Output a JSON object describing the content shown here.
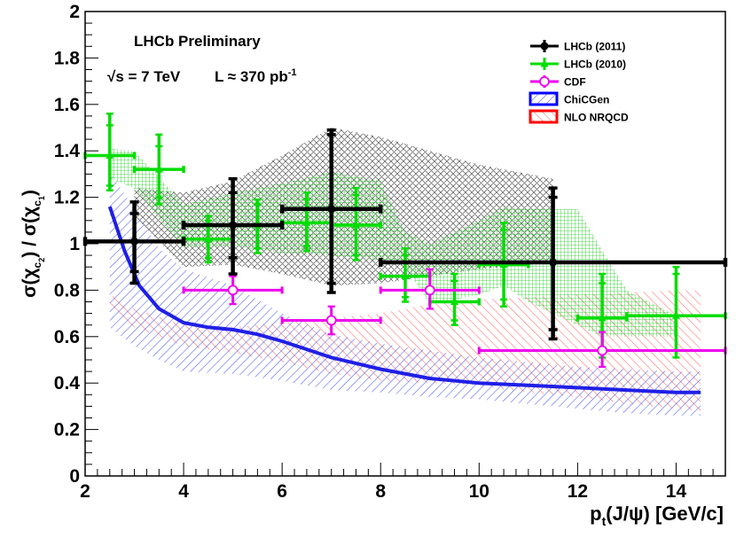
{
  "chart_data": {
    "type": "scatter",
    "title": "",
    "xlabel": "p_t(J/ψ) [GeV/c]",
    "ylabel": "σ(χ_c2) / σ(χ_c1)",
    "xlim": [
      2,
      15
    ],
    "ylim": [
      0,
      2
    ],
    "x_ticks": [
      2,
      4,
      6,
      8,
      10,
      12,
      14
    ],
    "y_ticks": [
      0,
      0.2,
      0.4,
      0.6,
      0.8,
      1,
      1.2,
      1.4,
      1.6,
      1.8,
      2
    ],
    "x_tick_labels": [
      "2",
      "4",
      "6",
      "8",
      "10",
      "12",
      "14"
    ],
    "y_tick_labels": [
      "0",
      "0.2",
      "0.4",
      "0.6",
      "0.8",
      "1",
      "1.2",
      "1.4",
      "1.6",
      "1.8",
      "2"
    ],
    "annotations": {
      "experiment": "LHCb Preliminary",
      "energy": "√s = 7 TeV",
      "luminosity": "L ≈ 370 pb",
      "luminosity_exp": "-1"
    },
    "legend": [
      {
        "label": "LHCb (2011)",
        "style": "marker-circle",
        "color": "#000000"
      },
      {
        "label": "LHCb (2010)",
        "style": "marker-triangle",
        "color": "#00dd00"
      },
      {
        "label": "CDF",
        "style": "marker-open-circle",
        "color": "#ee00ee"
      },
      {
        "label": "ChiCGen",
        "style": "band-hatch",
        "color": "#0000ff"
      },
      {
        "label": "NLO NRQCD",
        "style": "band-hatch",
        "color": "#ff0000"
      }
    ],
    "series": [
      {
        "name": "LHCb (2011)",
        "color": "#000000",
        "points": [
          {
            "x": 3,
            "xlo": 2,
            "xhi": 4,
            "y": 1.01,
            "stat": [
              0.88,
              1.13
            ],
            "syst": [
              0.83,
              1.18
            ]
          },
          {
            "x": 5,
            "xlo": 4,
            "xhi": 6,
            "y": 1.08,
            "stat": [
              0.94,
              1.22
            ],
            "syst": [
              0.87,
              1.28
            ]
          },
          {
            "x": 7,
            "xlo": 6,
            "xhi": 8,
            "y": 1.15,
            "stat": [
              0.83,
              1.47
            ],
            "syst": [
              0.79,
              1.49
            ]
          },
          {
            "x": 11.5,
            "xlo": 8,
            "xhi": 15,
            "y": 0.92,
            "stat": [
              0.63,
              1.2
            ],
            "syst": [
              0.59,
              1.24
            ]
          }
        ]
      },
      {
        "name": "LHCb (2010)",
        "color": "#00dd00",
        "points": [
          {
            "x": 2.5,
            "xlo": 2,
            "xhi": 3,
            "y": 1.38,
            "stat": [
              1.25,
              1.51
            ],
            "syst": [
              1.23,
              1.56
            ]
          },
          {
            "x": 3.5,
            "xlo": 3,
            "xhi": 4,
            "y": 1.32,
            "stat": [
              1.2,
              1.42
            ],
            "syst": [
              1.17,
              1.47
            ]
          },
          {
            "x": 4.5,
            "xlo": 4,
            "xhi": 5,
            "y": 1.02,
            "stat": [
              0.94,
              1.1
            ],
            "syst": [
              0.92,
              1.12
            ]
          },
          {
            "x": 5.5,
            "xlo": 5,
            "xhi": 6,
            "y": 1.08,
            "stat": [
              0.98,
              1.17
            ],
            "syst": [
              0.96,
              1.19
            ]
          },
          {
            "x": 6.5,
            "xlo": 6,
            "xhi": 7,
            "y": 1.09,
            "stat": [
              0.99,
              1.19
            ],
            "syst": [
              0.97,
              1.22
            ]
          },
          {
            "x": 7.5,
            "xlo": 7,
            "xhi": 8,
            "y": 1.08,
            "stat": [
              0.95,
              1.21
            ],
            "syst": [
              0.93,
              1.24
            ]
          },
          {
            "x": 8.5,
            "xlo": 8,
            "xhi": 9,
            "y": 0.86,
            "stat": [
              0.77,
              0.95
            ],
            "syst": [
              0.75,
              0.98
            ]
          },
          {
            "x": 9.5,
            "xlo": 9,
            "xhi": 10,
            "y": 0.75,
            "stat": [
              0.67,
              0.84
            ],
            "syst": [
              0.65,
              0.87
            ]
          },
          {
            "x": 10.5,
            "xlo": 10,
            "xhi": 11,
            "y": 0.91,
            "stat": [
              0.76,
              1.06
            ],
            "syst": [
              0.73,
              1.09
            ]
          },
          {
            "x": 12.5,
            "xlo": 12,
            "xhi": 13,
            "y": 0.68,
            "stat": [
              0.54,
              0.83
            ],
            "syst": [
              0.51,
              0.87
            ]
          },
          {
            "x": 14,
            "xlo": 13,
            "xhi": 15,
            "y": 0.69,
            "stat": [
              0.54,
              0.87
            ],
            "syst": [
              0.51,
              0.9
            ]
          }
        ]
      },
      {
        "name": "CDF",
        "color": "#ee00ee",
        "points": [
          {
            "x": 5,
            "xlo": 4,
            "xhi": 6,
            "y": 0.8,
            "stat": [
              0.74,
              0.86
            ],
            "syst": [
              0.74,
              0.86
            ]
          },
          {
            "x": 7,
            "xlo": 6,
            "xhi": 8,
            "y": 0.67,
            "stat": [
              0.61,
              0.73
            ],
            "syst": [
              0.61,
              0.73
            ]
          },
          {
            "x": 9,
            "xlo": 8,
            "xhi": 10,
            "y": 0.8,
            "stat": [
              0.72,
              0.89
            ],
            "syst": [
              0.72,
              0.89
            ]
          },
          {
            "x": 12.5,
            "xlo": 10,
            "xhi": 15,
            "y": 0.54,
            "stat": [
              0.47,
              0.62
            ],
            "syst": [
              0.47,
              0.62
            ]
          }
        ]
      }
    ],
    "bands": [
      {
        "name": "ChiCGen",
        "color": "#0000ff",
        "x": [
          2.5,
          3,
          3.5,
          4,
          5,
          6,
          7,
          8,
          9,
          10,
          11,
          12,
          13,
          14,
          14.5
        ],
        "lo": [
          0.64,
          0.56,
          0.5,
          0.45,
          0.44,
          0.41,
          0.37,
          0.36,
          0.34,
          0.33,
          0.31,
          0.29,
          0.27,
          0.26,
          0.26
        ],
        "hi": [
          1.31,
          1.15,
          0.98,
          0.89,
          0.82,
          0.7,
          0.61,
          0.57,
          0.54,
          0.51,
          0.49,
          0.47,
          0.46,
          0.45,
          0.45
        ],
        "central_x": [
          2.5,
          2.8,
          3.1,
          3.5,
          4,
          4.5,
          5,
          5.5,
          6,
          7,
          8,
          9,
          10,
          11,
          12,
          13,
          14,
          14.5
        ],
        "central_y": [
          1.16,
          0.97,
          0.82,
          0.72,
          0.66,
          0.64,
          0.63,
          0.61,
          0.58,
          0.51,
          0.46,
          0.42,
          0.4,
          0.39,
          0.38,
          0.37,
          0.36,
          0.36
        ]
      },
      {
        "name": "NLO NRQCD",
        "color": "#ff0000",
        "x": [
          2.5,
          3,
          4,
          5,
          6,
          7,
          8,
          9,
          10,
          11,
          12,
          13,
          14,
          14.5
        ],
        "lo": [
          0.72,
          0.64,
          0.56,
          0.53,
          0.49,
          0.44,
          0.41,
          0.4,
          0.39,
          0.36,
          0.34,
          0.31,
          0.29,
          0.28
        ],
        "hi": [
          0.78,
          0.72,
          0.65,
          0.64,
          0.66,
          0.68,
          0.7,
          0.74,
          0.76,
          0.77,
          0.78,
          0.79,
          0.8,
          0.8
        ]
      },
      {
        "name": "theory band (green)",
        "color": "#00cc00",
        "x": [
          2.5,
          3,
          4,
          5,
          6,
          7,
          8,
          8.5,
          9,
          10,
          10.5,
          11,
          12,
          12.5,
          13,
          14
        ],
        "lo": [
          1.28,
          1.24,
          0.98,
          0.99,
          0.96,
          0.95,
          0.93,
          0.9,
          0.74,
          0.78,
          0.82,
          0.75,
          0.65,
          0.6,
          0.6,
          0.6
        ],
        "hi": [
          1.41,
          1.4,
          1.17,
          1.22,
          1.26,
          1.31,
          1.27,
          1.05,
          1,
          1.1,
          1.16,
          1.15,
          1.15,
          0.97,
          0.8,
          0.69
        ]
      },
      {
        "name": "theory band (grey)",
        "color": "#444444",
        "x": [
          3,
          4,
          5,
          6,
          7,
          8,
          9,
          10,
          11,
          11.5
        ],
        "lo": [
          1.12,
          0.9,
          0.91,
          0.87,
          0.82,
          0.83,
          0.86,
          0.89,
          0.91,
          0.92
        ],
        "hi": [
          1.24,
          1.22,
          1.27,
          1.38,
          1.5,
          1.46,
          1.4,
          1.34,
          1.3,
          1.28
        ]
      }
    ]
  }
}
